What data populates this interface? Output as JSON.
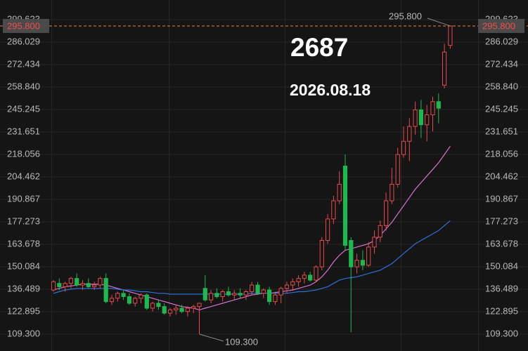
{
  "chart_data": {
    "type": "candlestick",
    "big_label": "2687",
    "date": "2026.08.18",
    "ylim": [
      99.1,
      311.5
    ],
    "yticks": [
      {
        "value": 109.3,
        "label": "109.300"
      },
      122.895,
      136.489,
      150.084,
      163.678,
      177.273,
      190.867,
      204.462,
      218.056,
      231.651,
      245.245,
      {
        "value": 258.84,
        "label": "258.840"
      },
      272.434,
      286.029,
      299.623
    ],
    "grid": true,
    "up_color": "#e84a4a",
    "down_color": "#1fb84f",
    "current_price": {
      "value": 295.8,
      "label": "295.800"
    },
    "max_label": {
      "value": 295.8,
      "label": "295.800"
    },
    "min_label": {
      "value": 109.3,
      "label": "109.300"
    },
    "candles": [
      [
        136,
        142,
        135,
        141
      ],
      [
        140,
        143,
        136,
        138
      ],
      [
        138,
        141,
        135,
        140
      ],
      [
        140,
        144,
        137,
        143
      ],
      [
        143,
        146,
        138,
        139
      ],
      [
        139,
        142,
        136,
        140
      ],
      [
        140,
        143,
        137,
        138
      ],
      [
        138,
        141,
        136,
        139
      ],
      [
        139,
        144,
        137,
        143
      ],
      [
        143,
        146,
        128,
        129
      ],
      [
        129,
        133,
        127,
        131
      ],
      [
        131,
        135,
        129,
        134
      ],
      [
        134,
        136,
        130,
        132
      ],
      [
        132,
        134,
        127,
        128
      ],
      [
        128,
        132,
        126,
        131
      ],
      [
        131,
        134,
        128,
        133
      ],
      [
        133,
        134,
        124,
        125
      ],
      [
        125,
        129,
        123,
        128
      ],
      [
        128,
        130,
        124,
        126
      ],
      [
        126,
        128,
        121,
        122
      ],
      [
        122,
        125,
        120,
        124
      ],
      [
        124,
        127,
        121,
        125
      ],
      [
        125,
        127,
        122,
        123
      ],
      [
        123,
        126,
        120,
        125
      ],
      [
        125,
        127,
        122,
        126
      ],
      [
        126,
        128,
        109.3,
        128
      ],
      [
        137,
        145,
        129,
        130
      ],
      [
        130,
        136,
        128,
        134
      ],
      [
        134,
        137,
        131,
        132
      ],
      [
        132,
        136,
        129,
        135
      ],
      [
        135,
        138,
        132,
        133
      ],
      [
        133,
        136,
        130,
        134
      ],
      [
        134,
        137,
        131,
        133
      ],
      [
        133,
        136,
        130,
        135
      ],
      [
        135,
        141,
        133,
        139
      ],
      [
        139,
        141,
        133,
        134
      ],
      [
        134,
        137,
        131,
        136
      ],
      [
        136,
        138,
        127,
        129
      ],
      [
        129,
        135,
        127,
        133
      ],
      [
        133,
        138,
        128,
        137
      ],
      [
        137,
        141,
        134,
        139
      ],
      [
        139,
        143,
        136,
        141
      ],
      [
        141,
        145,
        138,
        143
      ],
      [
        143,
        147,
        140,
        145
      ],
      [
        145,
        147,
        141,
        142
      ],
      [
        142,
        151,
        141,
        150
      ],
      [
        150,
        168,
        148,
        166
      ],
      [
        166,
        182,
        164,
        179
      ],
      [
        179,
        193,
        176,
        190
      ],
      [
        190,
        208,
        188,
        200
      ],
      [
        211,
        218,
        160,
        163
      ],
      [
        166,
        168,
        110.5,
        150
      ],
      [
        150,
        158,
        146,
        154
      ],
      [
        154,
        160,
        148,
        151
      ],
      [
        151,
        165,
        150,
        162
      ],
      [
        162,
        172,
        158,
        168
      ],
      [
        168,
        178,
        165,
        175
      ],
      [
        175,
        195,
        172,
        190
      ],
      [
        190,
        210,
        188,
        200
      ],
      [
        200,
        222,
        198,
        218
      ],
      [
        218,
        235,
        216,
        226
      ],
      [
        226,
        240,
        214,
        235
      ],
      [
        235,
        250,
        230,
        245
      ],
      [
        245,
        251,
        228,
        236
      ],
      [
        236,
        248,
        226,
        242
      ],
      [
        242,
        253,
        232,
        250
      ],
      [
        250,
        255,
        237,
        246
      ],
      [
        260,
        285,
        258,
        280
      ],
      [
        284,
        295.8,
        282,
        295.8
      ]
    ],
    "series": [
      {
        "color": "#d872d0",
        "values": [
          136,
          137,
          138,
          138.5,
          139,
          139.5,
          139.5,
          139.5,
          139.5,
          139,
          138,
          137,
          136,
          135,
          134,
          133,
          132,
          131,
          130,
          129,
          128,
          127,
          126,
          125.5,
          125,
          124,
          125,
          126,
          127,
          128,
          129,
          130,
          131,
          132,
          133,
          133.5,
          134,
          134,
          134.5,
          135,
          135.5,
          136,
          137,
          138,
          139,
          141,
          144,
          148,
          153,
          157,
          160,
          161,
          162,
          163,
          164,
          166,
          169,
          173,
          177,
          182,
          187,
          192,
          197,
          201,
          205,
          209,
          213,
          218,
          223
        ]
      },
      {
        "color": "#2c72d8",
        "values": [
          134,
          135,
          136,
          136.5,
          137,
          137,
          137,
          137,
          137,
          137,
          137,
          136.5,
          136,
          136,
          135.5,
          135,
          135,
          134.5,
          134,
          134,
          133.5,
          133.5,
          133.5,
          133.5,
          133.5,
          133.5,
          133.5,
          133.5,
          133.5,
          133.5,
          133.5,
          133.5,
          133.5,
          133.5,
          134,
          134,
          134,
          134,
          134,
          134,
          134,
          134.5,
          135,
          135,
          135.5,
          136,
          137,
          138,
          140,
          142,
          143,
          143.5,
          144,
          145,
          146,
          147,
          148,
          150,
          152,
          155,
          158,
          161,
          164,
          166,
          168,
          170,
          172,
          175,
          178
        ]
      }
    ]
  }
}
